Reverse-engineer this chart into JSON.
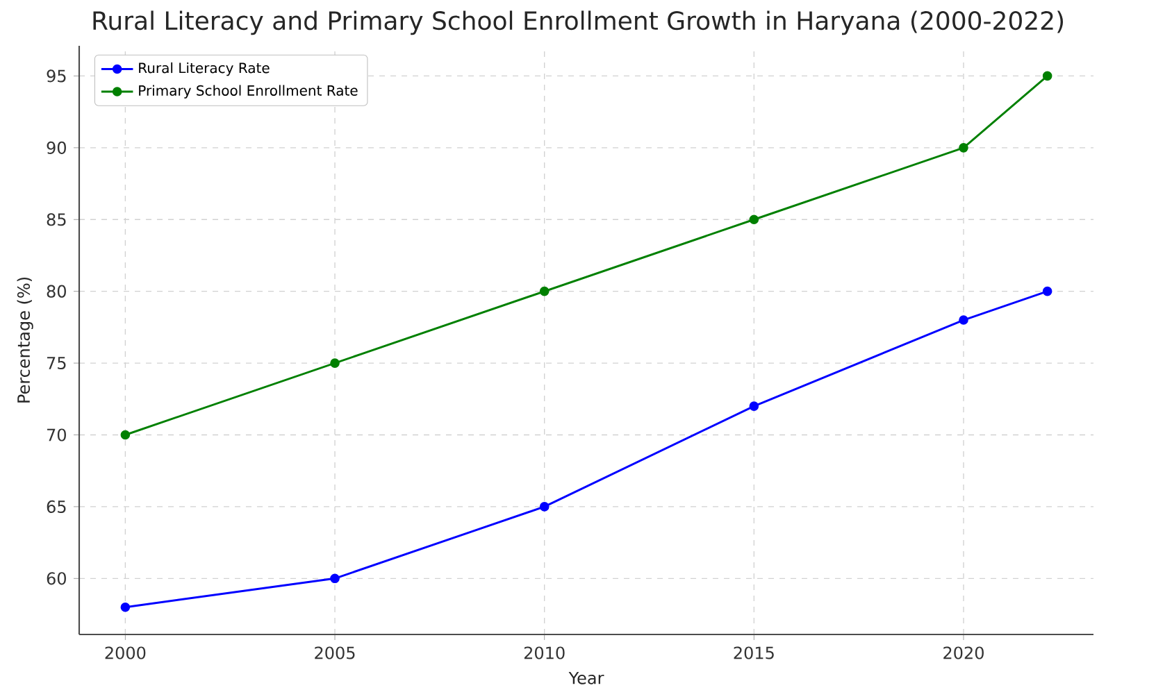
{
  "chart_data": {
    "type": "line",
    "title": "Rural Literacy and Primary School Enrollment Growth in Haryana (2000-2022)",
    "xlabel": "Year",
    "ylabel": "Percentage (%)",
    "x": [
      2000,
      2005,
      2010,
      2015,
      2020,
      2022
    ],
    "series": [
      {
        "name": "Rural Literacy Rate",
        "color": "#0000ff",
        "values": [
          58,
          60,
          65,
          72,
          78,
          80
        ]
      },
      {
        "name": "Primary School Enrollment Rate",
        "color": "#008000",
        "values": [
          70,
          75,
          80,
          85,
          90,
          95
        ]
      }
    ],
    "xlim": [
      1998.9,
      2023.1
    ],
    "xticks": [
      2000,
      2005,
      2010,
      2015,
      2020
    ],
    "ylim": [
      56.1,
      97.1
    ],
    "yticks": [
      60,
      65,
      70,
      75,
      80,
      85,
      90,
      95
    ],
    "grid": true,
    "legend": "top left",
    "marker": "circle",
    "line_style": "solid"
  }
}
